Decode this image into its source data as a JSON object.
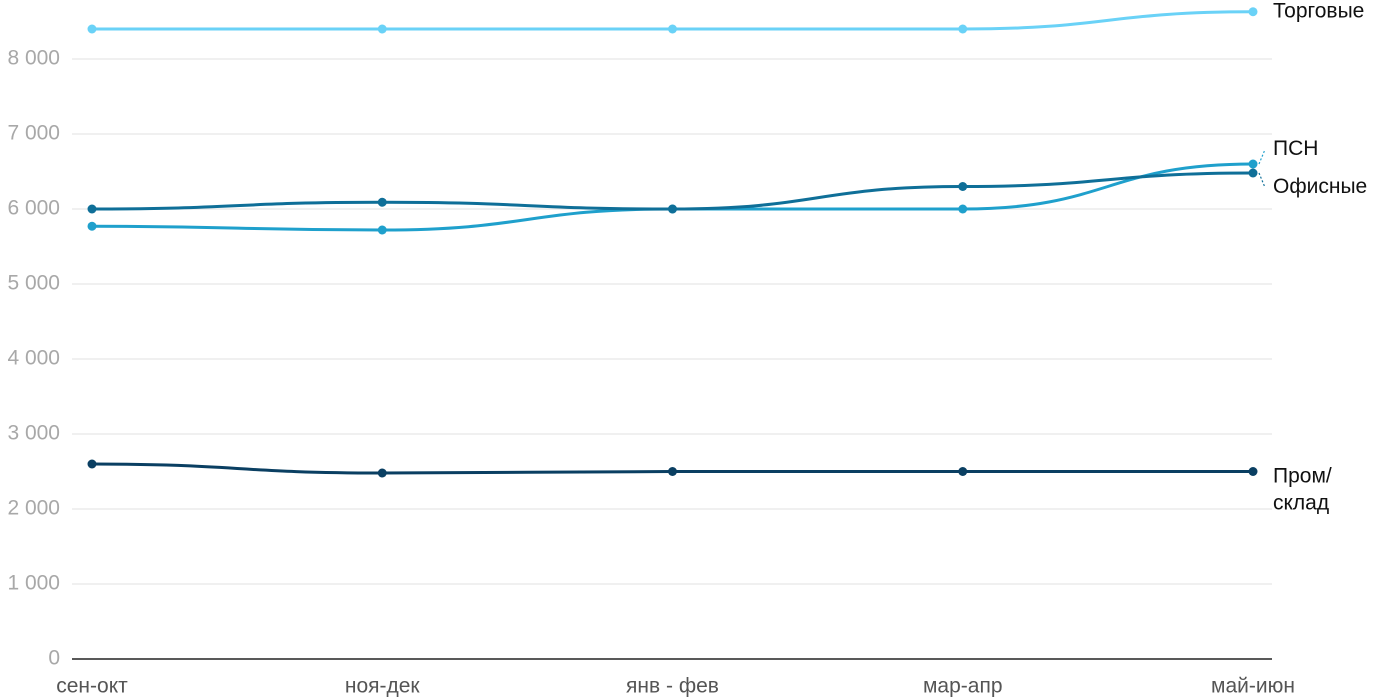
{
  "chart_data": {
    "type": "line",
    "categories": [
      "сен-окт",
      "ноя-дек",
      "янв - фев",
      "мар-апр",
      "май-июн"
    ],
    "series": [
      {
        "name": "Торговые",
        "color": "#6ad2f7",
        "values": [
          8400,
          8400,
          8400,
          8400,
          8630
        ]
      },
      {
        "name": "ПСН",
        "color": "#1fa0cc",
        "values": [
          5770,
          5720,
          6000,
          6000,
          6600
        ]
      },
      {
        "name": "Офисные",
        "color": "#0f6f98",
        "values": [
          6000,
          6090,
          6000,
          6300,
          6480
        ]
      },
      {
        "name": "Пром/\nсклад",
        "color": "#0a3f62",
        "values": [
          2600,
          2480,
          2500,
          2500,
          2500
        ]
      }
    ],
    "ylim": [
      0,
      8700
    ],
    "yticks": [
      0,
      {
        "value": 1000,
        "label": "1 000"
      },
      {
        "value": 2000,
        "label": "2 000"
      },
      {
        "value": 3000,
        "label": "3 000"
      },
      {
        "value": 4000,
        "label": "4 000"
      },
      {
        "value": 5000,
        "label": "5 000"
      },
      {
        "value": 6000,
        "label": "6 000"
      },
      {
        "value": 7000,
        "label": "7 000"
      },
      {
        "value": 8000,
        "label": "8 000"
      }
    ],
    "grid": true
  }
}
